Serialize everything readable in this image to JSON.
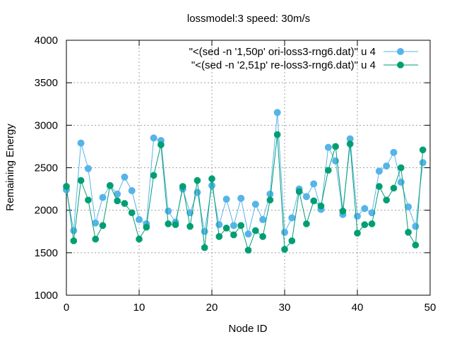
{
  "chart_data": {
    "type": "line",
    "title": "lossmodel:3 speed: 30m/s",
    "xlabel": "Node ID",
    "ylabel": "Remaining Energy",
    "xlim": [
      0,
      50
    ],
    "ylim": [
      1000,
      4000
    ],
    "xticks": [
      0,
      10,
      20,
      30,
      40,
      50
    ],
    "yticks": [
      1000,
      1500,
      2000,
      2500,
      3000,
      3500,
      4000
    ],
    "grid": true,
    "legend_position": "top-right",
    "x": [
      0,
      1,
      2,
      3,
      4,
      5,
      6,
      7,
      8,
      9,
      10,
      11,
      12,
      13,
      14,
      15,
      16,
      17,
      18,
      19,
      20,
      21,
      22,
      23,
      24,
      25,
      26,
      27,
      28,
      29,
      30,
      31,
      32,
      33,
      34,
      35,
      36,
      37,
      38,
      39,
      40,
      41,
      42,
      43,
      44,
      45,
      46,
      47,
      48,
      49
    ],
    "series": [
      {
        "name": "\"<(sed -n '1,50p' ori-loss3-rng6.dat)\" u 4",
        "color": "#56b4e9",
        "marker": "circle",
        "values": [
          2240,
          1760,
          2790,
          2490,
          1850,
          2150,
          2290,
          2190,
          2390,
          2230,
          1890,
          1840,
          2850,
          2820,
          1990,
          1860,
          2250,
          1970,
          2210,
          1750,
          2290,
          1830,
          2130,
          1820,
          2140,
          1720,
          2070,
          1890,
          2190,
          3150,
          1740,
          1910,
          2250,
          2160,
          2310,
          2010,
          2740,
          2580,
          1950,
          2840,
          1930,
          2020,
          1970,
          2460,
          2520,
          2680,
          2330,
          2040,
          1810,
          2560
        ]
      },
      {
        "name": "\"<(sed -n '2,51p' re-loss3-rng6.dat)\" u 4",
        "color": "#009e73",
        "marker": "filled-circle",
        "values": [
          2280,
          1640,
          2350,
          2120,
          1660,
          1820,
          2290,
          2110,
          2080,
          1970,
          1660,
          1800,
          2410,
          2770,
          1840,
          1830,
          2280,
          1810,
          2350,
          1560,
          2370,
          1690,
          1790,
          1710,
          1820,
          1530,
          1760,
          1690,
          2120,
          2890,
          1540,
          1640,
          2220,
          1840,
          2110,
          2050,
          2470,
          2750,
          1990,
          2780,
          1730,
          1830,
          1840,
          2280,
          2120,
          2260,
          2500,
          1740,
          1590,
          2710
        ]
      }
    ]
  }
}
